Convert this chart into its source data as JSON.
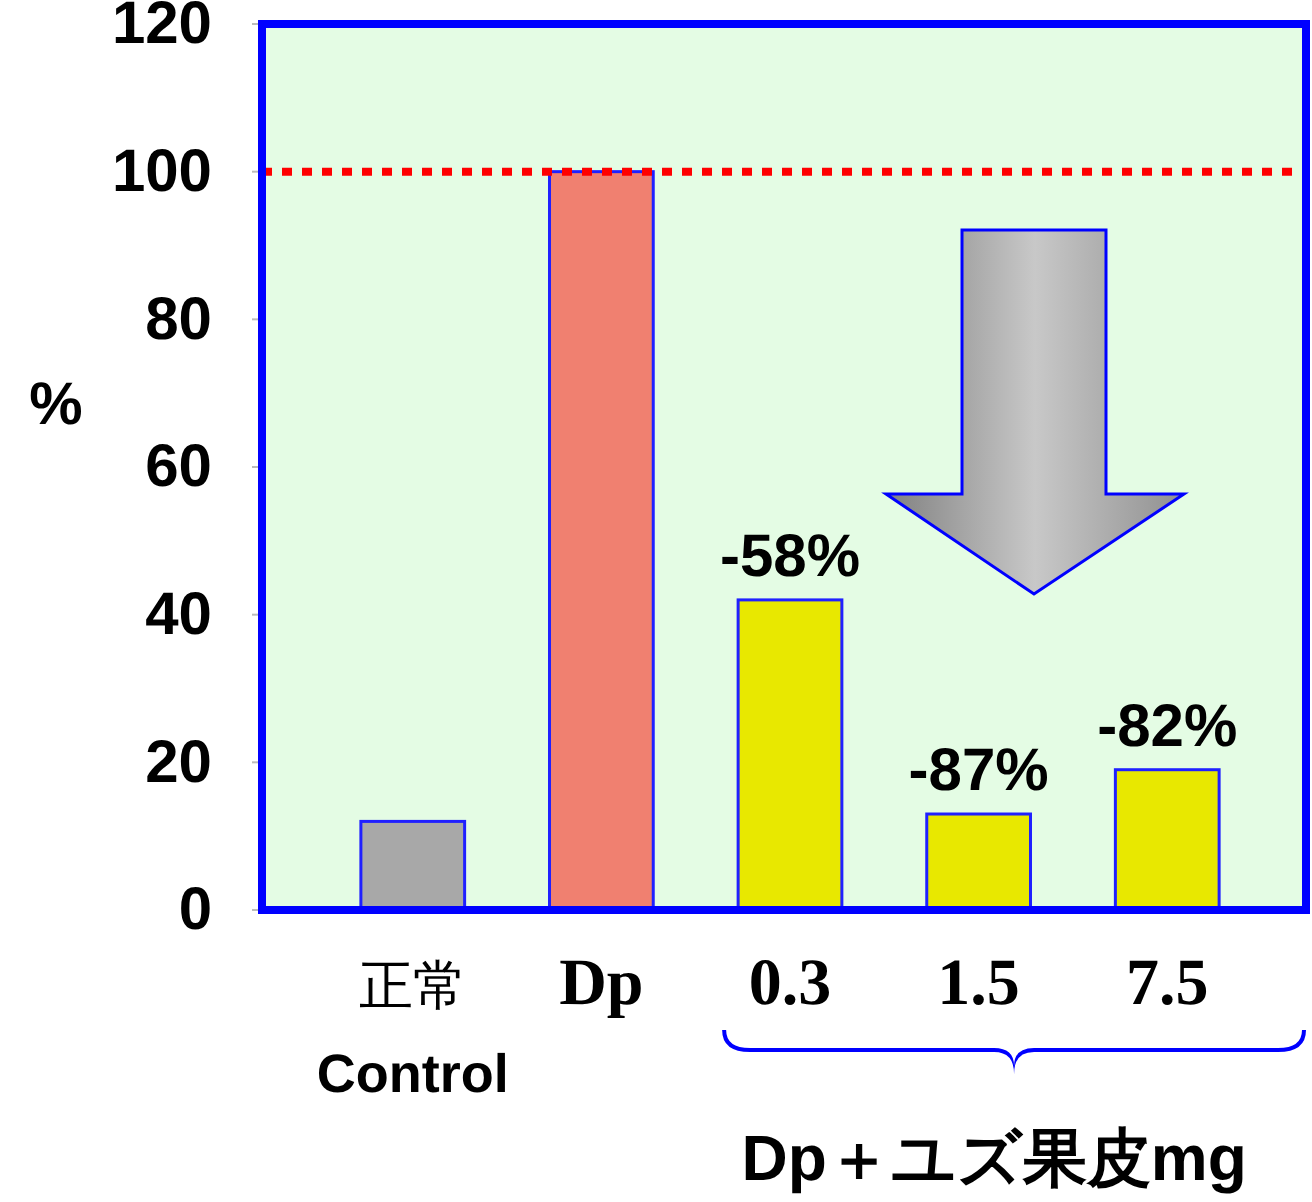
{
  "chart_data": {
    "type": "bar",
    "categories": [
      "正常\nControl",
      "Dp",
      "0.3",
      "1.5",
      "7.5"
    ],
    "values": [
      12,
      100,
      42,
      13,
      19
    ],
    "colors": [
      "#a8a8a8",
      "#f08070",
      "#e8e800",
      "#e8e800",
      "#e8e800"
    ],
    "xlabel": "Dp＋ユズ果皮mg",
    "ylabel": "%",
    "ylim": [
      0,
      120
    ],
    "yticks": [
      0,
      20,
      40,
      60,
      80,
      100,
      120
    ],
    "grid": false,
    "ref_lines": [
      {
        "axis": "y",
        "value": 100,
        "color": "#ff0000",
        "line_style": "dotted"
      }
    ],
    "annotations": [
      {
        "text": "-58%",
        "x": "0.3",
        "y": 42
      },
      {
        "text": "-87%",
        "x": "1.5",
        "y": 13
      },
      {
        "text": "-82%",
        "x": "7.5",
        "y": 19
      }
    ]
  }
}
